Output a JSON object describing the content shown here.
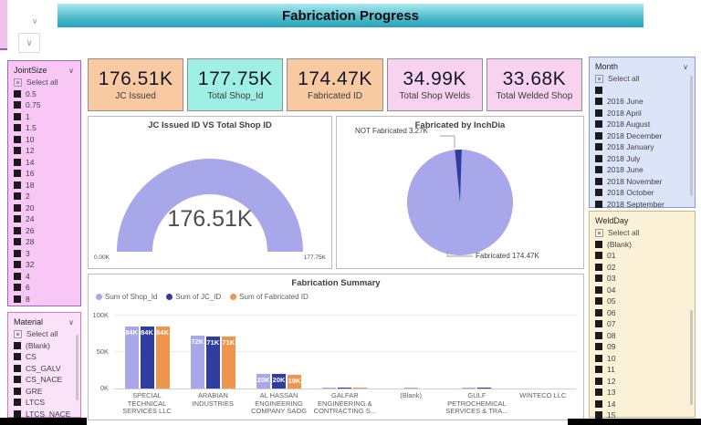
{
  "header": {
    "title": "Fabrication Progress"
  },
  "icons": {
    "chevron_down": "∨"
  },
  "kpis": [
    {
      "value": "176.51K",
      "label": "JC Issued",
      "bg": "#f9c9a1"
    },
    {
      "value": "177.75K",
      "label": "Total Shop_Id",
      "bg": "#9ff0e4"
    },
    {
      "value": "174.47K",
      "label": "Fabricated ID",
      "bg": "#f9c9a1"
    },
    {
      "value": "34.99K",
      "label": "Total Shop Welds",
      "bg": "#f8d3f0"
    },
    {
      "value": "33.68K",
      "label": "Total Welded Shop",
      "bg": "#f8d3f0"
    }
  ],
  "filters": [
    {
      "id": "jointsize",
      "title": "JointSize",
      "bg": "#f8c7f5",
      "border": "#a262c8",
      "has_chevron": true,
      "select_all": "Select all",
      "scrollbar": false,
      "items": [
        "0.5",
        "0.75",
        "1",
        "1.5",
        "10",
        "12",
        "14",
        "16",
        "18",
        "2",
        "20",
        "24",
        "26",
        "28",
        "3",
        "32",
        "4",
        "6",
        "8"
      ]
    },
    {
      "id": "material",
      "title": "Material",
      "bg": "#fae2f8",
      "border": "#d873cc",
      "has_chevron": true,
      "select_all": "Select all",
      "scrollbar": true,
      "items": [
        "(Blank)",
        "CS",
        "CS_GALV",
        "CS_NACE",
        "GRE",
        "LTCS",
        "LTCS_NACE"
      ]
    },
    {
      "id": "month",
      "title": "Month",
      "bg": "#dce4f8",
      "border": "#8a9ad8",
      "has_chevron": true,
      "select_all": "Select all",
      "scrollbar": true,
      "items": [
        "",
        "2016 June",
        "2018 April",
        "2018 August",
        "2018 December",
        "2018 January",
        "2018 July",
        "2018 June",
        "2018 November",
        "2018 October",
        "2018 September"
      ]
    },
    {
      "id": "weldday",
      "title": "WeldDay",
      "bg": "#faf1d7",
      "border": "#cdb97f",
      "has_chevron": false,
      "select_all": "Select all",
      "scrollbar": true,
      "items": [
        "(Blank)",
        "01",
        "02",
        "03",
        "04",
        "05",
        "06",
        "07",
        "08",
        "09",
        "10",
        "11",
        "12",
        "13",
        "14",
        "15"
      ]
    }
  ],
  "chart_data": [
    {
      "type": "gauge",
      "title": "JC Issued ID VS Total Shop ID",
      "value": "176.51K",
      "value_num": 176.51,
      "min_label": "0.00K",
      "max_label": "177.75K",
      "min": 0,
      "max": 177.75,
      "color": "#a7a7e9"
    },
    {
      "type": "pie",
      "title": "Fabricated by InchDia",
      "slices": [
        {
          "name": "Fabricated",
          "value": 174.47,
          "display": "Fabricated 174.47K",
          "color": "#a7a7e9"
        },
        {
          "name": "NOT Fabricated",
          "value": 3.27,
          "display": "NOT Fabricated 3.27K",
          "color": "#2e3d9e"
        }
      ]
    },
    {
      "type": "bar",
      "title": "Fabrication Summary",
      "categories": [
        "SPECIAL TECHNICAL SERVICES LLC",
        "ARABIAN INDUSTRIES",
        "AL HASSAN ENGINEERING COMPANY SAOG",
        "GALFAR ENGINEERING & CONTRACTING S...",
        "(Blank)",
        "GULF PETROCHEMICAL SERVICES & TRA...",
        "WINTECO LLC"
      ],
      "series": [
        {
          "name": "Sum of Shop_Id",
          "color": "#a7a7e9",
          "values": [
            84,
            72,
            20,
            1,
            1,
            1,
            0
          ]
        },
        {
          "name": "Sum of JC_ID",
          "color": "#2e3d9e",
          "values": [
            84,
            71,
            20,
            1,
            0,
            1,
            0
          ]
        },
        {
          "name": "Sum of Fabricated ID",
          "color": "#f0954e",
          "values": [
            84,
            71,
            19,
            1,
            0,
            0,
            0
          ]
        }
      ],
      "yticks": [
        "100K",
        "50K",
        "0K"
      ],
      "ylim": [
        0,
        100
      ],
      "unit": "K",
      "legend_position": "top-left",
      "grid": true
    }
  ]
}
